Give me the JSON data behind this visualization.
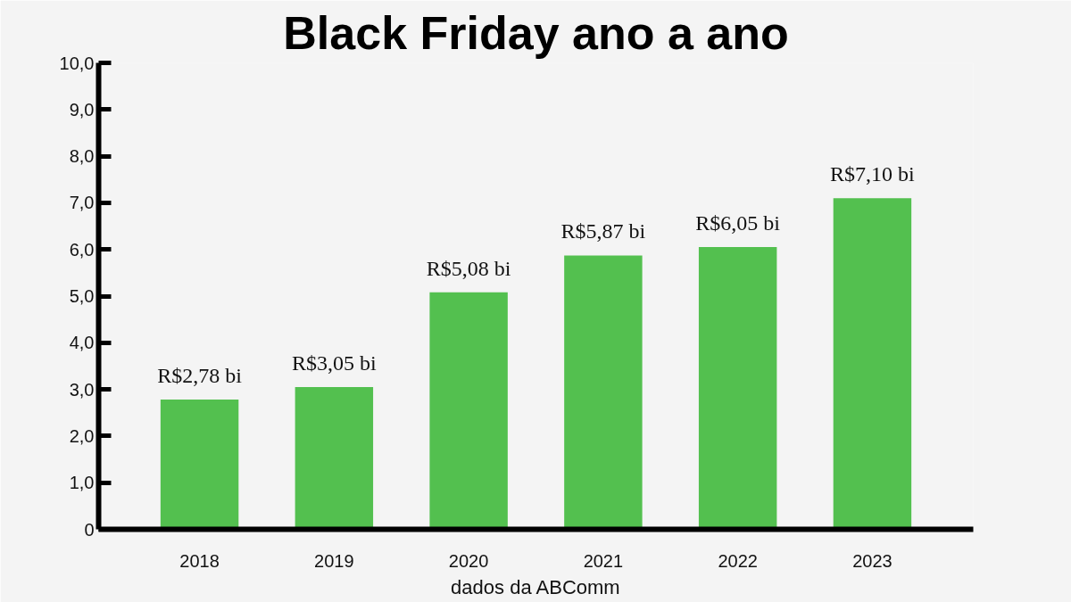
{
  "chart_data": {
    "type": "bar",
    "title": "Black Friday ano a ano",
    "categories": [
      "2018",
      "2019",
      "2020",
      "2021",
      "2022",
      "2023"
    ],
    "values": [
      2.78,
      3.05,
      5.08,
      5.87,
      6.05,
      7.1
    ],
    "value_labels": [
      "R$2,78 bi",
      "R$3,05 bi",
      "R$5,08 bi",
      "R$5,87 bi",
      "R$6,05 bi",
      "R$7,10 bi"
    ],
    "color": "#53c04f",
    "ylim": [
      0,
      10
    ],
    "yticks": [
      0,
      {
        "value": 1,
        "label": "1,0"
      },
      {
        "value": 2,
        "label": "2,0"
      },
      {
        "value": 3,
        "label": "3,0"
      },
      {
        "value": 4,
        "label": "4,0"
      },
      {
        "value": 5,
        "label": "5,0"
      },
      {
        "value": 6,
        "label": "6,0"
      },
      {
        "value": 7,
        "label": "7,0"
      },
      {
        "value": 8,
        "label": "8,0"
      },
      {
        "value": 9,
        "label": "9,0"
      },
      {
        "value": 10,
        "label": "10,0"
      }
    ],
    "grid": false,
    "annotations": [
      "dados da ABComm"
    ]
  }
}
